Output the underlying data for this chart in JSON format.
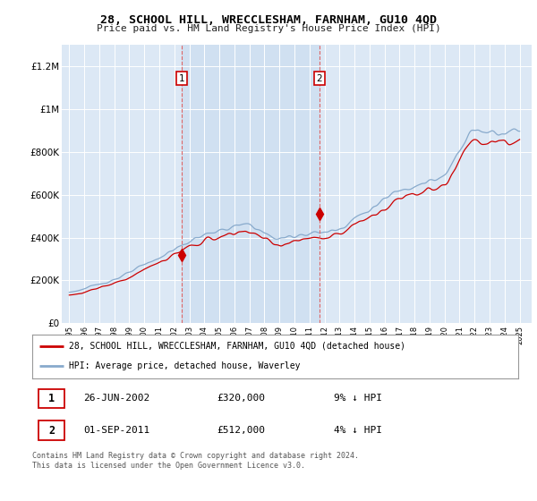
{
  "title": "28, SCHOOL HILL, WRECCLESHAM, FARNHAM, GU10 4QD",
  "subtitle": "Price paid vs. HM Land Registry's House Price Index (HPI)",
  "plot_bg_color": "#dce8f5",
  "shade_color": "#ccddf0",
  "legend_line1": "28, SCHOOL HILL, WRECCLESHAM, FARNHAM, GU10 4QD (detached house)",
  "legend_line2": "HPI: Average price, detached house, Waverley",
  "info1_date": "26-JUN-2002",
  "info1_price": "£320,000",
  "info1_hpi": "9% ↓ HPI",
  "info2_date": "01-SEP-2011",
  "info2_price": "£512,000",
  "info2_hpi": "4% ↓ HPI",
  "footer": "Contains HM Land Registry data © Crown copyright and database right 2024.\nThis data is licensed under the Open Government Licence v3.0.",
  "red_color": "#cc0000",
  "blue_color": "#88aacc",
  "vline_color": "#dd6666",
  "sale1_year": 2002.5,
  "sale1_price": 320000,
  "sale2_year": 2011.67,
  "sale2_price": 512000,
  "ylim_min": 0,
  "ylim_max": 1300000,
  "xlim_min": 1994.5,
  "xlim_max": 2025.8,
  "yticks": [
    0,
    200000,
    400000,
    600000,
    800000,
    1000000,
    1200000
  ],
  "ytick_labels": [
    "£0",
    "£200K",
    "£400K",
    "£600K",
    "£800K",
    "£1M",
    "£1.2M"
  ]
}
